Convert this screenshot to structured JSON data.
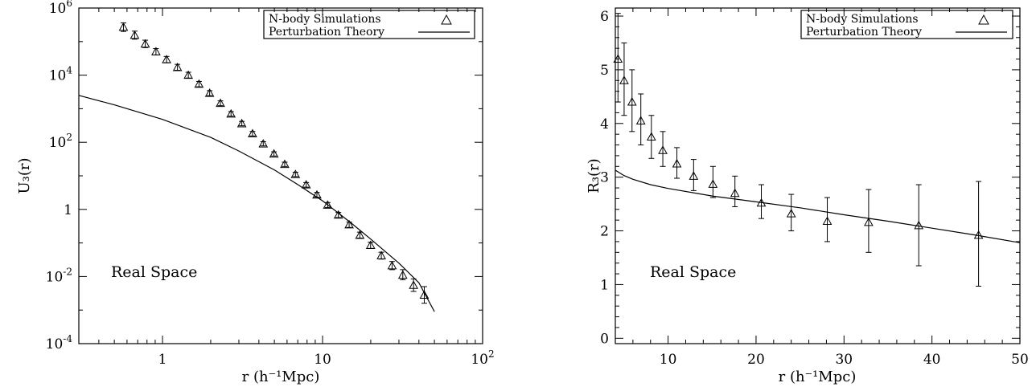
{
  "chart_data": [
    {
      "type": "scatter",
      "xlabel": "r (h⁻¹Mpc)",
      "ylabel": "U₃(r)",
      "xscale": "log",
      "yscale": "log",
      "xlim": [
        0.3,
        100
      ],
      "ylim": [
        0.0001,
        1000000
      ],
      "x_ticks": [
        {
          "value": 1,
          "label": "1"
        },
        {
          "value": 10,
          "label": "10"
        },
        {
          "value": 100,
          "label": "10",
          "sup": "2"
        }
      ],
      "y_ticks": [
        {
          "value": 0.0001,
          "label": "10",
          "sup": "-4"
        },
        {
          "value": 0.01,
          "label": "10",
          "sup": "-2"
        },
        {
          "value": 1,
          "label": "1",
          "sup": ""
        },
        {
          "value": 100,
          "label": "10",
          "sup": "2"
        },
        {
          "value": 10000,
          "label": "10",
          "sup": "4"
        },
        {
          "value": 1000000,
          "label": "10",
          "sup": "6"
        }
      ],
      "annotation": "Real Space",
      "legend_position": "top-right",
      "series": [
        {
          "name": "N-body Simulations",
          "style": "triangles with error bars",
          "points": [
            {
              "x": 0.57,
              "y": 270000,
              "lo": 200000,
              "hi": 360000
            },
            {
              "x": 0.67,
              "y": 155000,
              "lo": 118000,
              "hi": 205000
            },
            {
              "x": 0.78,
              "y": 85000,
              "lo": 66000,
              "hi": 110000
            },
            {
              "x": 0.91,
              "y": 50000,
              "lo": 40000,
              "hi": 62000
            },
            {
              "x": 1.06,
              "y": 29000,
              "lo": 23500,
              "hi": 36000
            },
            {
              "x": 1.24,
              "y": 17000,
              "lo": 14000,
              "hi": 21000
            },
            {
              "x": 1.45,
              "y": 10000,
              "lo": 8200,
              "hi": 12200
            },
            {
              "x": 1.69,
              "y": 5400,
              "lo": 4500,
              "hi": 6500
            },
            {
              "x": 1.97,
              "y": 2900,
              "lo": 2450,
              "hi": 3450
            },
            {
              "x": 2.3,
              "y": 1450,
              "lo": 1230,
              "hi": 1710
            },
            {
              "x": 2.68,
              "y": 700,
              "lo": 600,
              "hi": 820
            },
            {
              "x": 3.13,
              "y": 360,
              "lo": 310,
              "hi": 420
            },
            {
              "x": 3.65,
              "y": 180,
              "lo": 155,
              "hi": 210
            },
            {
              "x": 4.26,
              "y": 90,
              "lo": 78,
              "hi": 104
            },
            {
              "x": 4.97,
              "y": 45,
              "lo": 39,
              "hi": 52
            },
            {
              "x": 5.8,
              "y": 22,
              "lo": 19,
              "hi": 25.5
            },
            {
              "x": 6.77,
              "y": 11,
              "lo": 9.5,
              "hi": 12.8
            },
            {
              "x": 7.9,
              "y": 5.4,
              "lo": 4.6,
              "hi": 6.3
            },
            {
              "x": 9.22,
              "y": 2.7,
              "lo": 2.3,
              "hi": 3.2
            },
            {
              "x": 10.76,
              "y": 1.35,
              "lo": 1.14,
              "hi": 1.6
            },
            {
              "x": 12.56,
              "y": 0.68,
              "lo": 0.57,
              "hi": 0.81
            },
            {
              "x": 14.66,
              "y": 0.35,
              "lo": 0.29,
              "hi": 0.42
            },
            {
              "x": 17.1,
              "y": 0.17,
              "lo": 0.14,
              "hi": 0.21
            },
            {
              "x": 19.96,
              "y": 0.085,
              "lo": 0.069,
              "hi": 0.105
            },
            {
              "x": 23.29,
              "y": 0.042,
              "lo": 0.033,
              "hi": 0.053
            },
            {
              "x": 27.18,
              "y": 0.021,
              "lo": 0.016,
              "hi": 0.028
            },
            {
              "x": 31.72,
              "y": 0.011,
              "lo": 0.008,
              "hi": 0.016
            },
            {
              "x": 37.02,
              "y": 0.0055,
              "lo": 0.0036,
              "hi": 0.0085
            },
            {
              "x": 43.2,
              "y": 0.0028,
              "lo": 0.0016,
              "hi": 0.005
            }
          ]
        },
        {
          "name": "Perturbation Theory",
          "style": "solid line",
          "points": [
            {
              "x": 0.3,
              "y": 2500
            },
            {
              "x": 0.5,
              "y": 1300
            },
            {
              "x": 1,
              "y": 480
            },
            {
              "x": 2,
              "y": 140
            },
            {
              "x": 3,
              "y": 55
            },
            {
              "x": 5,
              "y": 15
            },
            {
              "x": 7,
              "y": 5.5
            },
            {
              "x": 10,
              "y": 1.8
            },
            {
              "x": 15,
              "y": 0.4
            },
            {
              "x": 20,
              "y": 0.13
            },
            {
              "x": 30,
              "y": 0.025
            },
            {
              "x": 40,
              "y": 0.0065
            },
            {
              "x": 50,
              "y": 0.0009
            }
          ]
        }
      ]
    },
    {
      "type": "scatter",
      "xlabel": "r (h⁻¹Mpc)",
      "ylabel": "R₃(r)",
      "xscale": "linear",
      "yscale": "linear",
      "xlim": [
        4,
        50
      ],
      "ylim": [
        -0.1,
        6.15
      ],
      "x_ticks": [
        {
          "value": 10,
          "label": "10"
        },
        {
          "value": 20,
          "label": "20"
        },
        {
          "value": 30,
          "label": "30"
        },
        {
          "value": 40,
          "label": "40"
        },
        {
          "value": 50,
          "label": "50"
        }
      ],
      "y_ticks": [
        {
          "value": 0,
          "label": "0"
        },
        {
          "value": 1,
          "label": "1"
        },
        {
          "value": 2,
          "label": "2"
        },
        {
          "value": 3,
          "label": "3"
        },
        {
          "value": 4,
          "label": "4"
        },
        {
          "value": 5,
          "label": "5"
        },
        {
          "value": 6,
          "label": "6"
        }
      ],
      "annotation": "Real Space",
      "legend_position": "top-right",
      "series": [
        {
          "name": "N-body Simulations",
          "style": "triangles with error bars",
          "points": [
            {
              "x": 4.3,
              "y": 5.2,
              "lo": 4.4,
              "hi": 6.05
            },
            {
              "x": 5.0,
              "y": 4.8,
              "lo": 4.15,
              "hi": 5.5
            },
            {
              "x": 5.9,
              "y": 4.4,
              "lo": 3.85,
              "hi": 5.0
            },
            {
              "x": 6.9,
              "y": 4.05,
              "lo": 3.6,
              "hi": 4.55
            },
            {
              "x": 8.1,
              "y": 3.75,
              "lo": 3.35,
              "hi": 4.15
            },
            {
              "x": 9.4,
              "y": 3.5,
              "lo": 3.2,
              "hi": 3.85
            },
            {
              "x": 11.0,
              "y": 3.25,
              "lo": 2.98,
              "hi": 3.55
            },
            {
              "x": 12.9,
              "y": 3.02,
              "lo": 2.75,
              "hi": 3.33
            },
            {
              "x": 15.1,
              "y": 2.87,
              "lo": 2.62,
              "hi": 3.2
            },
            {
              "x": 17.6,
              "y": 2.7,
              "lo": 2.45,
              "hi": 3.02
            },
            {
              "x": 20.6,
              "y": 2.52,
              "lo": 2.23,
              "hi": 2.86
            },
            {
              "x": 24.0,
              "y": 2.32,
              "lo": 2.0,
              "hi": 2.68
            },
            {
              "x": 28.1,
              "y": 2.18,
              "lo": 1.8,
              "hi": 2.62
            },
            {
              "x": 32.8,
              "y": 2.16,
              "lo": 1.6,
              "hi": 2.77
            },
            {
              "x": 38.5,
              "y": 2.1,
              "lo": 1.35,
              "hi": 2.86
            },
            {
              "x": 45.3,
              "y": 1.92,
              "lo": 0.97,
              "hi": 2.92
            }
          ]
        },
        {
          "name": "Perturbation Theory",
          "style": "solid line",
          "points": [
            {
              "x": 4,
              "y": 3.13
            },
            {
              "x": 5,
              "y": 3.03
            },
            {
              "x": 6,
              "y": 2.96
            },
            {
              "x": 8,
              "y": 2.86
            },
            {
              "x": 10,
              "y": 2.79
            },
            {
              "x": 15,
              "y": 2.65
            },
            {
              "x": 20,
              "y": 2.54
            },
            {
              "x": 25,
              "y": 2.43
            },
            {
              "x": 30,
              "y": 2.3
            },
            {
              "x": 35,
              "y": 2.18
            },
            {
              "x": 40,
              "y": 2.05
            },
            {
              "x": 45,
              "y": 1.92
            },
            {
              "x": 50,
              "y": 1.78
            }
          ]
        }
      ]
    }
  ]
}
